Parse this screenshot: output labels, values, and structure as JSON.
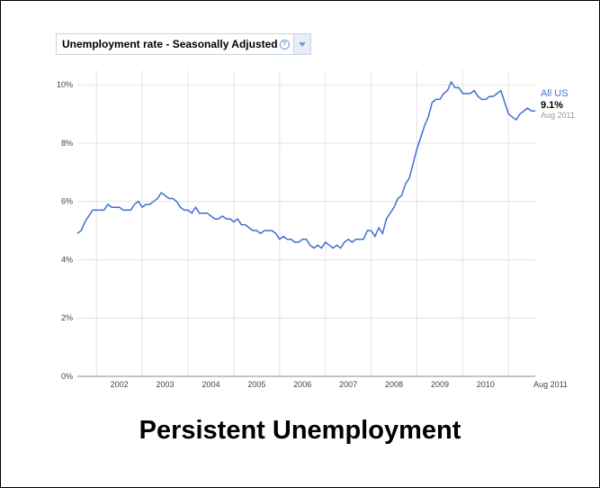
{
  "dropdown": {
    "label": "Unemployment rate - Seasonally Adjusted",
    "help_icon": "help-circle-icon",
    "arrow_icon": "chevron-down-icon"
  },
  "legend": {
    "series_name": "All US",
    "latest_value": "9.1%",
    "latest_date": "Aug 2011"
  },
  "caption": "Persistent Unemployment",
  "colors": {
    "line": "#3f6fd1",
    "grid": "#e4e4e4",
    "axis_text": "#444444",
    "legend_date": "#999999"
  },
  "chart_data": {
    "type": "line",
    "title": "Unemployment rate - Seasonally Adjusted",
    "xlabel": "",
    "ylabel": "",
    "ylim": [
      0,
      10.5
    ],
    "yticks": [
      "0%",
      "2%",
      "4%",
      "6%",
      "8%",
      "10%"
    ],
    "ytick_values": [
      0,
      2,
      4,
      6,
      8,
      10
    ],
    "xticks": [
      "2002",
      "2003",
      "2004",
      "2005",
      "2006",
      "2007",
      "2008",
      "2009",
      "2010",
      "Aug 2011"
    ],
    "xlim": [
      "2001-08",
      "2011-08"
    ],
    "grid": true,
    "legend_placement": "right",
    "series": [
      {
        "name": "All US",
        "points": [
          [
            "2001-08",
            4.9
          ],
          [
            "2001-09",
            5.0
          ],
          [
            "2001-10",
            5.3
          ],
          [
            "2001-11",
            5.5
          ],
          [
            "2001-12",
            5.7
          ],
          [
            "2002-01",
            5.7
          ],
          [
            "2002-02",
            5.7
          ],
          [
            "2002-03",
            5.7
          ],
          [
            "2002-04",
            5.9
          ],
          [
            "2002-05",
            5.8
          ],
          [
            "2002-06",
            5.8
          ],
          [
            "2002-07",
            5.8
          ],
          [
            "2002-08",
            5.7
          ],
          [
            "2002-09",
            5.7
          ],
          [
            "2002-10",
            5.7
          ],
          [
            "2002-11",
            5.9
          ],
          [
            "2002-12",
            6.0
          ],
          [
            "2003-01",
            5.8
          ],
          [
            "2003-02",
            5.9
          ],
          [
            "2003-03",
            5.9
          ],
          [
            "2003-04",
            6.0
          ],
          [
            "2003-05",
            6.1
          ],
          [
            "2003-06",
            6.3
          ],
          [
            "2003-07",
            6.2
          ],
          [
            "2003-08",
            6.1
          ],
          [
            "2003-09",
            6.1
          ],
          [
            "2003-10",
            6.0
          ],
          [
            "2003-11",
            5.8
          ],
          [
            "2003-12",
            5.7
          ],
          [
            "2004-01",
            5.7
          ],
          [
            "2004-02",
            5.6
          ],
          [
            "2004-03",
            5.8
          ],
          [
            "2004-04",
            5.6
          ],
          [
            "2004-05",
            5.6
          ],
          [
            "2004-06",
            5.6
          ],
          [
            "2004-07",
            5.5
          ],
          [
            "2004-08",
            5.4
          ],
          [
            "2004-09",
            5.4
          ],
          [
            "2004-10",
            5.5
          ],
          [
            "2004-11",
            5.4
          ],
          [
            "2004-12",
            5.4
          ],
          [
            "2005-01",
            5.3
          ],
          [
            "2005-02",
            5.4
          ],
          [
            "2005-03",
            5.2
          ],
          [
            "2005-04",
            5.2
          ],
          [
            "2005-05",
            5.1
          ],
          [
            "2005-06",
            5.0
          ],
          [
            "2005-07",
            5.0
          ],
          [
            "2005-08",
            4.9
          ],
          [
            "2005-09",
            5.0
          ],
          [
            "2005-10",
            5.0
          ],
          [
            "2005-11",
            5.0
          ],
          [
            "2005-12",
            4.9
          ],
          [
            "2006-01",
            4.7
          ],
          [
            "2006-02",
            4.8
          ],
          [
            "2006-03",
            4.7
          ],
          [
            "2006-04",
            4.7
          ],
          [
            "2006-05",
            4.6
          ],
          [
            "2006-06",
            4.6
          ],
          [
            "2006-07",
            4.7
          ],
          [
            "2006-08",
            4.7
          ],
          [
            "2006-09",
            4.5
          ],
          [
            "2006-10",
            4.4
          ],
          [
            "2006-11",
            4.5
          ],
          [
            "2006-12",
            4.4
          ],
          [
            "2007-01",
            4.6
          ],
          [
            "2007-02",
            4.5
          ],
          [
            "2007-03",
            4.4
          ],
          [
            "2007-04",
            4.5
          ],
          [
            "2007-05",
            4.4
          ],
          [
            "2007-06",
            4.6
          ],
          [
            "2007-07",
            4.7
          ],
          [
            "2007-08",
            4.6
          ],
          [
            "2007-09",
            4.7
          ],
          [
            "2007-10",
            4.7
          ],
          [
            "2007-11",
            4.7
          ],
          [
            "2007-12",
            5.0
          ],
          [
            "2008-01",
            5.0
          ],
          [
            "2008-02",
            4.8
          ],
          [
            "2008-03",
            5.1
          ],
          [
            "2008-04",
            4.9
          ],
          [
            "2008-05",
            5.4
          ],
          [
            "2008-06",
            5.6
          ],
          [
            "2008-07",
            5.8
          ],
          [
            "2008-08",
            6.1
          ],
          [
            "2008-09",
            6.2
          ],
          [
            "2008-10",
            6.6
          ],
          [
            "2008-11",
            6.8
          ],
          [
            "2008-12",
            7.3
          ],
          [
            "2009-01",
            7.8
          ],
          [
            "2009-02",
            8.2
          ],
          [
            "2009-03",
            8.6
          ],
          [
            "2009-04",
            8.9
          ],
          [
            "2009-05",
            9.4
          ],
          [
            "2009-06",
            9.5
          ],
          [
            "2009-07",
            9.5
          ],
          [
            "2009-08",
            9.7
          ],
          [
            "2009-09",
            9.8
          ],
          [
            "2009-10",
            10.1
          ],
          [
            "2009-11",
            9.9
          ],
          [
            "2009-12",
            9.9
          ],
          [
            "2010-01",
            9.7
          ],
          [
            "2010-02",
            9.7
          ],
          [
            "2010-03",
            9.7
          ],
          [
            "2010-04",
            9.8
          ],
          [
            "2010-05",
            9.6
          ],
          [
            "2010-06",
            9.5
          ],
          [
            "2010-07",
            9.5
          ],
          [
            "2010-08",
            9.6
          ],
          [
            "2010-09",
            9.6
          ],
          [
            "2010-10",
            9.7
          ],
          [
            "2010-11",
            9.8
          ],
          [
            "2010-12",
            9.4
          ],
          [
            "2011-01",
            9.0
          ],
          [
            "2011-02",
            8.9
          ],
          [
            "2011-03",
            8.8
          ],
          [
            "2011-04",
            9.0
          ],
          [
            "2011-05",
            9.1
          ],
          [
            "2011-06",
            9.2
          ],
          [
            "2011-07",
            9.1
          ],
          [
            "2011-08",
            9.1
          ]
        ]
      }
    ]
  }
}
